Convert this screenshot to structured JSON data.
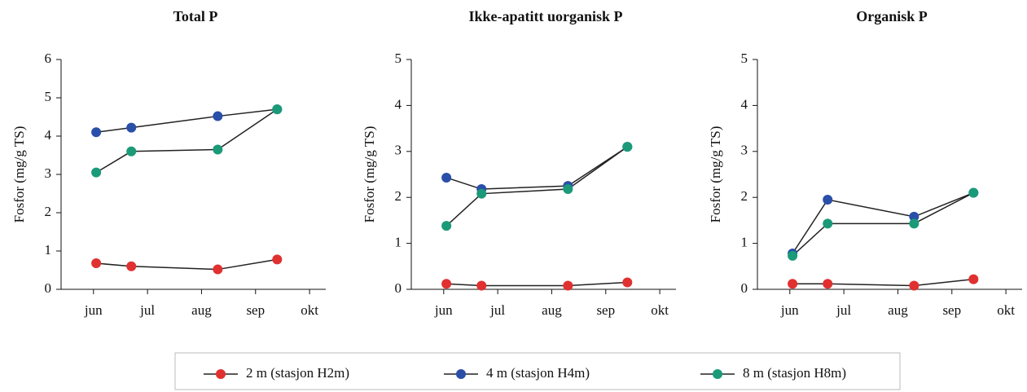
{
  "chart_data": [
    {
      "type": "line",
      "title": "Total P",
      "y_label": "Fosfor (mg/g TS)",
      "x": [
        0.05,
        0.7,
        2.3,
        3.4
      ],
      "xlim": [
        -0.6,
        4.3
      ],
      "xticks": [
        {
          "value": 0,
          "label": "jun"
        },
        {
          "value": 1,
          "label": "jul"
        },
        {
          "value": 2,
          "label": "aug"
        },
        {
          "value": 3,
          "label": "sep"
        },
        {
          "value": 4,
          "label": "okt"
        }
      ],
      "ylim": [
        0,
        6
      ],
      "yticks": [
        0,
        1,
        2,
        3,
        4,
        5,
        6
      ],
      "series": [
        {
          "name": "2 m (stasjon H2m)",
          "color": "#e03030",
          "values": [
            0.68,
            0.6,
            0.52,
            0.78
          ]
        },
        {
          "name": "4 m (stasjon H4m)",
          "color": "#2a4fa8",
          "values": [
            4.1,
            4.22,
            4.52,
            4.7
          ]
        },
        {
          "name": "8 m (stasjon H8m)",
          "color": "#1a9a78",
          "values": [
            3.05,
            3.6,
            3.65,
            4.7
          ]
        }
      ]
    },
    {
      "type": "line",
      "title": "Ikke-apatitt uorganisk P",
      "y_label": "Fosfor (mg/g TS)",
      "x": [
        0.05,
        0.7,
        2.3,
        3.4
      ],
      "xlim": [
        -0.6,
        4.3
      ],
      "xticks": [
        {
          "value": 0,
          "label": "jun"
        },
        {
          "value": 1,
          "label": "jul"
        },
        {
          "value": 2,
          "label": "aug"
        },
        {
          "value": 3,
          "label": "sep"
        },
        {
          "value": 4,
          "label": "okt"
        }
      ],
      "ylim": [
        0,
        5
      ],
      "yticks": [
        0,
        1,
        2,
        3,
        4,
        5
      ],
      "series": [
        {
          "name": "2 m (stasjon H2m)",
          "color": "#e03030",
          "values": [
            0.12,
            0.08,
            0.08,
            0.15
          ]
        },
        {
          "name": "4 m (stasjon H4m)",
          "color": "#2a4fa8",
          "values": [
            2.43,
            2.18,
            2.25,
            3.1
          ]
        },
        {
          "name": "8 m (stasjon H8m)",
          "color": "#1a9a78",
          "values": [
            1.38,
            2.08,
            2.18,
            3.1
          ]
        }
      ]
    },
    {
      "type": "line",
      "title": "Organisk P",
      "y_label": "Fosfor (mg/g TS)",
      "x": [
        0.05,
        0.7,
        2.3,
        3.4
      ],
      "xlim": [
        -0.6,
        4.3
      ],
      "xticks": [
        {
          "value": 0,
          "label": "jun"
        },
        {
          "value": 1,
          "label": "jul"
        },
        {
          "value": 2,
          "label": "aug"
        },
        {
          "value": 3,
          "label": "sep"
        },
        {
          "value": 4,
          "label": "okt"
        }
      ],
      "ylim": [
        0,
        5
      ],
      "yticks": [
        0,
        1,
        2,
        3,
        4,
        5
      ],
      "series": [
        {
          "name": "2 m (stasjon H2m)",
          "color": "#e03030",
          "values": [
            0.12,
            0.12,
            0.08,
            0.22
          ]
        },
        {
          "name": "4 m (stasjon H4m)",
          "color": "#2a4fa8",
          "values": [
            0.78,
            1.95,
            1.58,
            2.1
          ]
        },
        {
          "name": "8 m (stasjon H8m)",
          "color": "#1a9a78",
          "values": [
            0.73,
            1.43,
            1.43,
            2.1
          ]
        }
      ]
    }
  ]
}
